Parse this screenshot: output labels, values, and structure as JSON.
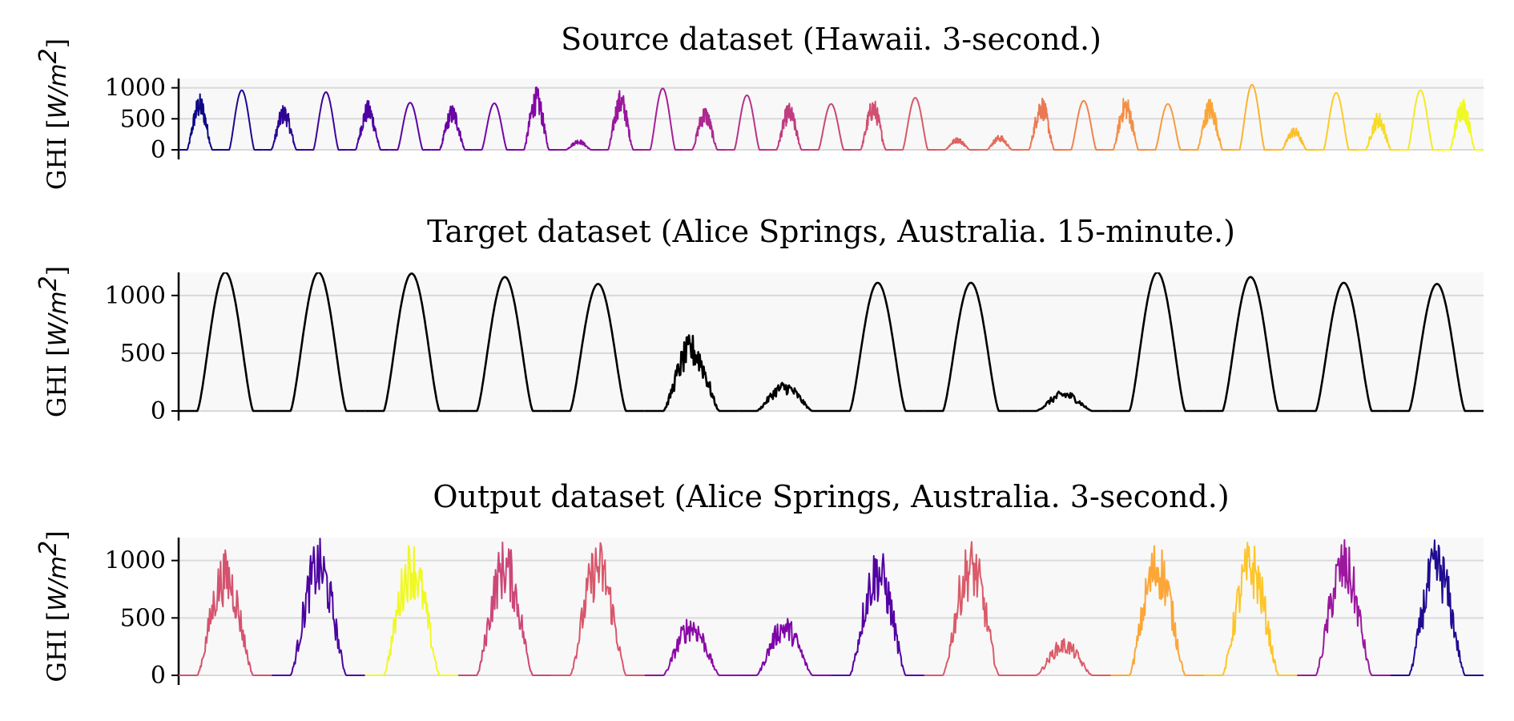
{
  "chart_data": [
    {
      "type": "line",
      "title": "Source dataset (Hawaii. 3-second.)",
      "ylabel_text": "GHI [",
      "ylabel_unit": "W/m",
      "ylabel_sup": "2",
      "ylabel_close": "]",
      "ylim": [
        0,
        1150
      ],
      "yticks": [
        0,
        500,
        1000
      ],
      "ytick_labels": [
        "0",
        "500",
        "1000"
      ],
      "grid": true,
      "legend": "none",
      "x_tick_labels_visible": false,
      "colormap": "plasma",
      "series_peaks": [
        910,
        960,
        740,
        930,
        800,
        760,
        740,
        750,
        1020,
        170,
        980,
        990,
        720,
        880,
        760,
        740,
        840,
        840,
        200,
        240,
        880,
        790,
        890,
        740,
        850,
        1050,
        370,
        920,
        620,
        960,
        870
      ]
    },
    {
      "type": "line",
      "title": "Target dataset (Alice Springs, Australia. 15-minute.)",
      "ylabel_text": "GHI [",
      "ylabel_unit": "W/m",
      "ylabel_sup": "2",
      "ylabel_close": "]",
      "ylim": [
        0,
        1200
      ],
      "yticks": [
        0,
        500,
        1000
      ],
      "ytick_labels": [
        "0",
        "500",
        "1000"
      ],
      "grid": true,
      "legend": "none",
      "x_tick_labels_visible": false,
      "line_color": "#000000",
      "series_peaks": [
        1200,
        1200,
        1190,
        1160,
        1100,
        670,
        260,
        1110,
        1110,
        180,
        1200,
        1160,
        1110,
        1100
      ]
    },
    {
      "type": "line",
      "title": "Output dataset (Alice Springs, Australia. 3-second.)",
      "ylabel_text": "GHI [",
      "ylabel_unit": "W/m",
      "ylabel_sup": "2",
      "ylabel_close": "]",
      "ylim": [
        0,
        1200
      ],
      "yticks": [
        0,
        500,
        1000
      ],
      "ytick_labels": [
        "0",
        "500",
        "1000"
      ],
      "grid": true,
      "legend": "none",
      "x_tick_labels_visible": false,
      "series_colors": [
        "#d4536e",
        "#4c02a1",
        "#f0f921",
        "#cc4778",
        "#d8576b",
        "#8b0aa5",
        "#7e03a8",
        "#5302a3",
        "#da5b69",
        "#db5c68",
        "#fca636",
        "#fdc527",
        "#9c179e",
        "#1f0c91"
      ],
      "series_peaks": [
        1100,
        1200,
        1200,
        1200,
        1200,
        540,
        530,
        1140,
        1200,
        330,
        1200,
        1200,
        1200,
        1200
      ]
    }
  ]
}
